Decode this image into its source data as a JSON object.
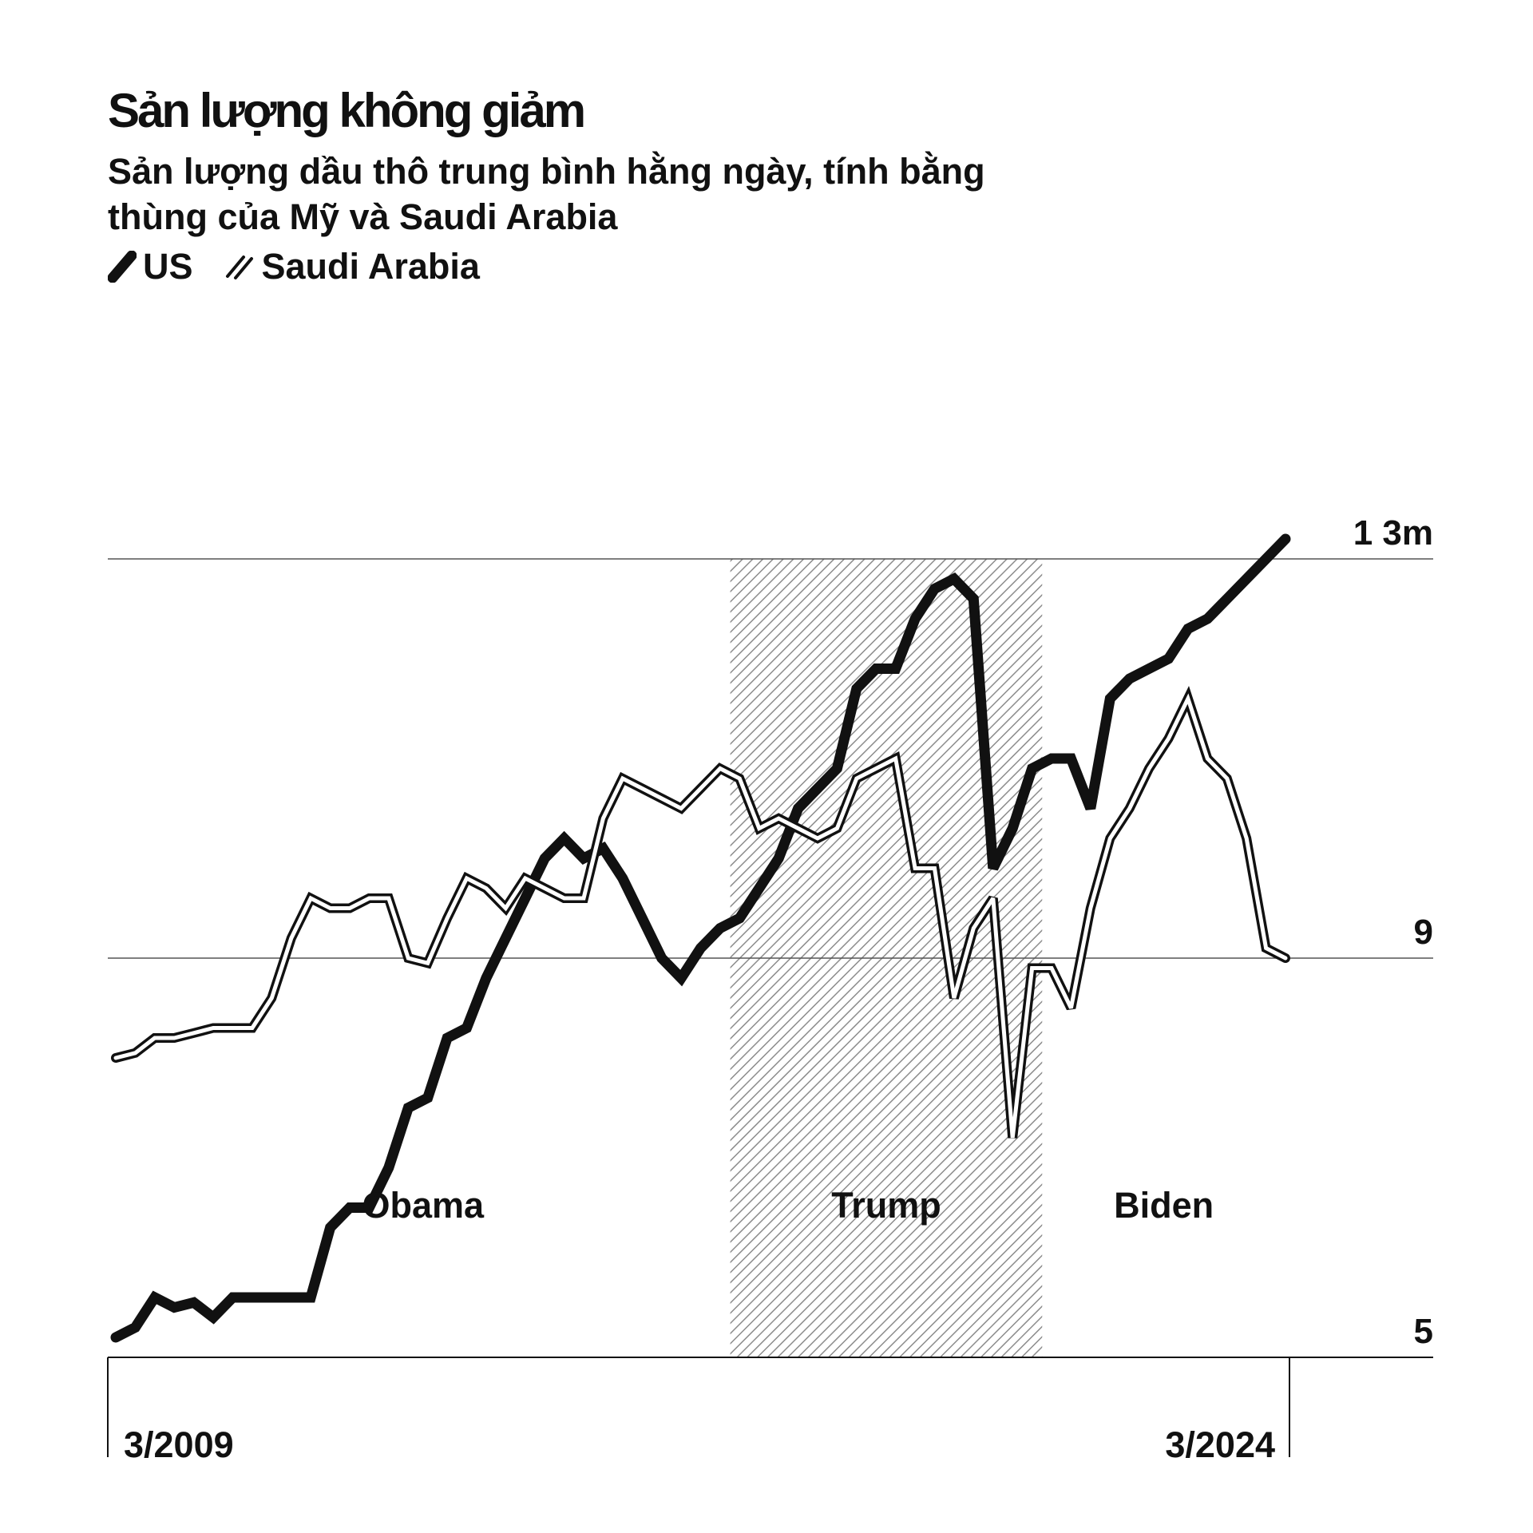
{
  "title": "Sản lượng không giảm",
  "subtitle": "Sản lượng dầu thô trung bình hằng ngày, tính bằng thùng của Mỹ và  Saudi Arabia",
  "legend": {
    "us_label": "US",
    "saudi_label": "Saudi Arabia"
  },
  "colors": {
    "ink": "#111111",
    "grid": "#555555",
    "paper": "#ffffff",
    "hatch": "#8c8c8c"
  },
  "chart_data": {
    "type": "line",
    "title": "Sản lượng không giảm",
    "subtitle": "Sản lượng dầu thô trung bình hằng ngày, tính bằng thùng của Mỹ và  Saudi Arabia",
    "xlabel": "",
    "ylabel": "",
    "x_start_label": "3/2009",
    "x_end_label": "3/2024",
    "xlim": [
      2009.17,
      2024.17
    ],
    "ylim": [
      5,
      13
    ],
    "y_ticks": [
      5,
      9,
      13
    ],
    "y_tick_labels": [
      "5",
      "9",
      "1 3m"
    ],
    "grid": true,
    "legend_position": "top-left",
    "periods": [
      {
        "label": "Obama",
        "start": 2009.17,
        "end": 2017.05,
        "shaded": false
      },
      {
        "label": "Trump",
        "start": 2017.05,
        "end": 2021.05,
        "shaded": true
      },
      {
        "label": "Biden",
        "start": 2021.05,
        "end": 2024.17,
        "shaded": false
      }
    ],
    "series": [
      {
        "name": "US",
        "style": "solid",
        "x": [
          2009.17,
          2009.42,
          2009.67,
          2009.92,
          2010.17,
          2010.42,
          2010.67,
          2010.92,
          2011.17,
          2011.42,
          2011.67,
          2011.92,
          2012.17,
          2012.42,
          2012.67,
          2012.92,
          2013.17,
          2013.42,
          2013.67,
          2013.92,
          2014.17,
          2014.42,
          2014.67,
          2014.92,
          2015.17,
          2015.42,
          2015.67,
          2015.92,
          2016.17,
          2016.42,
          2016.67,
          2016.92,
          2017.17,
          2017.42,
          2017.67,
          2017.92,
          2018.17,
          2018.42,
          2018.67,
          2018.92,
          2019.17,
          2019.42,
          2019.67,
          2019.92,
          2020.17,
          2020.42,
          2020.67,
          2020.92,
          2021.17,
          2021.42,
          2021.67,
          2021.92,
          2022.17,
          2022.42,
          2022.67,
          2022.92,
          2023.17,
          2023.42,
          2023.67,
          2023.92,
          2024.17
        ],
        "values": [
          5.2,
          5.3,
          5.6,
          5.5,
          5.55,
          5.4,
          5.6,
          5.6,
          5.6,
          5.6,
          5.6,
          6.3,
          6.5,
          6.5,
          6.9,
          7.5,
          7.6,
          8.2,
          8.3,
          8.8,
          9.2,
          9.6,
          10.0,
          10.2,
          10.0,
          10.1,
          9.8,
          9.4,
          9.0,
          8.8,
          9.1,
          9.3,
          9.4,
          9.7,
          10.0,
          10.5,
          10.7,
          10.9,
          11.7,
          11.9,
          11.9,
          12.4,
          12.7,
          12.8,
          12.6,
          9.9,
          10.3,
          10.9,
          11.0,
          11.0,
          10.5,
          11.6,
          11.8,
          11.9,
          12.0,
          12.3,
          12.4,
          12.6,
          12.8,
          13.0,
          13.2
        ]
      },
      {
        "name": "Saudi Arabia",
        "style": "double",
        "x": [
          2009.17,
          2009.42,
          2009.67,
          2009.92,
          2010.17,
          2010.42,
          2010.67,
          2010.92,
          2011.17,
          2011.42,
          2011.67,
          2011.92,
          2012.17,
          2012.42,
          2012.67,
          2012.92,
          2013.17,
          2013.42,
          2013.67,
          2013.92,
          2014.17,
          2014.42,
          2014.67,
          2014.92,
          2015.17,
          2015.42,
          2015.67,
          2015.92,
          2016.17,
          2016.42,
          2016.67,
          2016.92,
          2017.17,
          2017.42,
          2017.67,
          2017.92,
          2018.17,
          2018.42,
          2018.67,
          2018.92,
          2019.17,
          2019.42,
          2019.67,
          2019.92,
          2020.17,
          2020.42,
          2020.67,
          2020.92,
          2021.17,
          2021.42,
          2021.67,
          2021.92,
          2022.17,
          2022.42,
          2022.67,
          2022.92,
          2023.17,
          2023.42,
          2023.67,
          2023.92,
          2024.17
        ],
        "values": [
          8.0,
          8.05,
          8.2,
          8.2,
          8.25,
          8.3,
          8.3,
          8.3,
          8.6,
          9.2,
          9.6,
          9.5,
          9.5,
          9.6,
          9.6,
          9.0,
          8.95,
          9.4,
          9.8,
          9.7,
          9.5,
          9.8,
          9.7,
          9.6,
          9.6,
          10.4,
          10.8,
          10.7,
          10.6,
          10.5,
          10.7,
          10.9,
          10.8,
          10.3,
          10.4,
          10.3,
          10.2,
          10.3,
          10.8,
          10.9,
          11.0,
          9.9,
          9.9,
          8.6,
          9.3,
          9.6,
          7.2,
          8.9,
          8.9,
          8.5,
          9.5,
          10.2,
          10.5,
          10.9,
          11.2,
          11.6,
          11.0,
          10.8,
          10.2,
          9.1,
          9.0
        ]
      }
    ]
  }
}
